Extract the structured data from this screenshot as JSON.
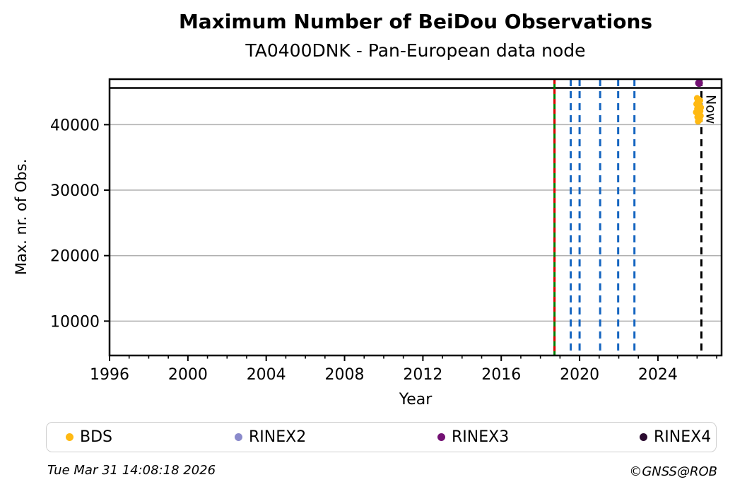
{
  "title": "Maximum Number of BeiDou Observations",
  "subtitle": "TA0400DNK - Pan-European data node",
  "footer": {
    "timestamp": "Tue Mar 31 14:08:18 2026",
    "credit": "©GNSS@ROB"
  },
  "colors": {
    "grid": "#b0b0b0",
    "spine": "#000000",
    "max_obs_line": "#000000",
    "event_green": "#007d00",
    "event_red": "#e00000",
    "event_blue": "#1565c0",
    "now_line": "#000000"
  },
  "chart_data": {
    "type": "scatter",
    "title": "Maximum Number of BeiDou Observations",
    "subtitle": "TA0400DNK - Pan-European data node",
    "xlabel": "Year",
    "ylabel": "Max. nr. of Obs.",
    "xlim": [
      1996,
      2027.25
    ],
    "ylim": [
      4750,
      46950
    ],
    "xticks": [
      1996,
      2000,
      2004,
      2008,
      2012,
      2016,
      2020,
      2024
    ],
    "xticks_minor_every": 1,
    "yticks": [
      10000,
      20000,
      30000,
      40000
    ],
    "grid": "horizontal-only",
    "legend_position": "bottom",
    "hline": {
      "y": 45600,
      "style": "solid",
      "color": "#000000"
    },
    "vlines": [
      {
        "x": 2018.72,
        "style": "solid",
        "color": "#007d00",
        "overlay": {
          "style": "dashed",
          "color": "#e00000"
        }
      },
      {
        "x": 2019.55,
        "style": "dashed",
        "color": "#1565c0"
      },
      {
        "x": 2020.0,
        "style": "dashed",
        "color": "#1565c0"
      },
      {
        "x": 2021.05,
        "style": "dashed",
        "color": "#1565c0"
      },
      {
        "x": 2021.97,
        "style": "dashed",
        "color": "#1565c0"
      },
      {
        "x": 2022.8,
        "style": "dashed",
        "color": "#1565c0"
      },
      {
        "x": 2026.22,
        "style": "dashed",
        "color": "#000000",
        "label": "Now"
      }
    ],
    "series": [
      {
        "name": "BDS",
        "color": "#ffb912",
        "marker_radius": 4.5,
        "points": [
          [
            2026.0,
            44050
          ],
          [
            2026.08,
            43880
          ],
          [
            2026.15,
            43680
          ],
          [
            2026.03,
            43500
          ],
          [
            2026.1,
            43320
          ],
          [
            2025.97,
            43150
          ],
          [
            2026.06,
            42980
          ],
          [
            2026.13,
            42800
          ],
          [
            2026.19,
            42620
          ],
          [
            2026.01,
            42440
          ],
          [
            2026.09,
            42260
          ],
          [
            2026.16,
            42080
          ],
          [
            2025.95,
            41900
          ],
          [
            2026.04,
            41720
          ],
          [
            2026.11,
            41540
          ],
          [
            2026.18,
            41350
          ],
          [
            2026.02,
            41150
          ],
          [
            2026.07,
            40950
          ],
          [
            2026.14,
            40750
          ],
          [
            2026.05,
            40500
          ]
        ]
      },
      {
        "name": "RINEX2",
        "color": "#8a8acb",
        "marker_radius": 5.5,
        "points": []
      },
      {
        "name": "RINEX3",
        "color": "#731173",
        "marker_radius": 5.5,
        "points": [
          [
            2026.1,
            46350
          ]
        ]
      },
      {
        "name": "RINEX4",
        "color": "#2b0b30",
        "marker_radius": 5.5,
        "points": []
      }
    ]
  }
}
